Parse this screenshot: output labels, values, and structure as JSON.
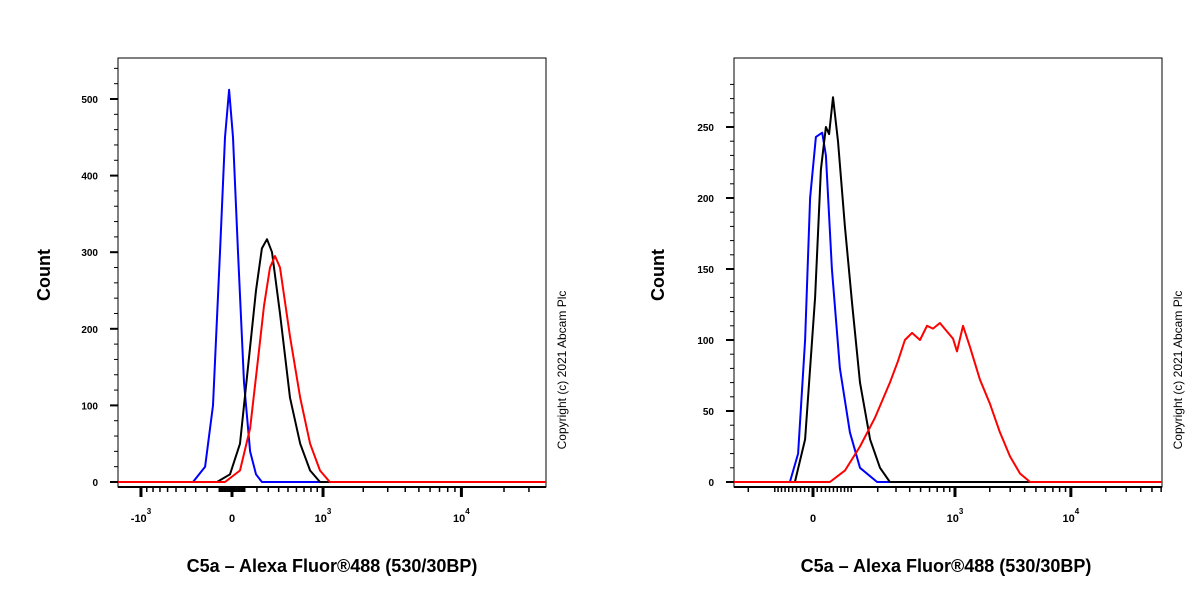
{
  "chart_data": [
    {
      "type": "line",
      "xlabel": "C5a – Alexa Fluor®488 (530/30BP)",
      "ylabel": "Count",
      "x_scale": "biexponential",
      "xlim": [
        -1490,
        39600
      ],
      "ylim": [
        0,
        560
      ],
      "y_ticks": [
        0,
        100,
        200,
        300,
        400,
        500
      ],
      "x_ticks": [
        {
          "value": -1000,
          "base": "-10",
          "exp": "3"
        },
        {
          "value": 0,
          "base": "0",
          "exp": ""
        },
        {
          "value": 1000,
          "base": "10",
          "exp": "3"
        },
        {
          "value": 10000,
          "base": "10",
          "exp": "4"
        }
      ],
      "grid": false,
      "copyright": "Copyright (c) 2021 Abcam Plc",
      "series": [
        {
          "color": "#0000ff",
          "x": [
            -325,
            -217,
            -151,
            -94,
            -55,
            -23,
            8,
            47,
            94,
            143,
            192,
            243
          ],
          "y": [
            0,
            20,
            100,
            300,
            450,
            512,
            450,
            300,
            130,
            40,
            10,
            0
          ]
        },
        {
          "color": "#000000",
          "x": [
            -118,
            -16,
            63,
            126,
            192,
            243,
            288,
            335,
            414,
            523,
            648,
            787,
            946
          ],
          "y": [
            0,
            10,
            50,
            150,
            250,
            305,
            317,
            300,
            220,
            110,
            50,
            15,
            0
          ]
        },
        {
          "color": "#ff0000",
          "x": [
            -55,
            63,
            143,
            209,
            261,
            316,
            364,
            414,
            523,
            648,
            787,
            946,
            1128
          ],
          "y": [
            0,
            15,
            70,
            160,
            230,
            280,
            295,
            280,
            190,
            110,
            50,
            15,
            0
          ]
        }
      ]
    },
    {
      "type": "line",
      "xlabel": "C5a – Alexa Fluor®488 (530/30BP)",
      "ylabel": "Count",
      "x_scale": "biexponential",
      "xlim": [
        -274,
        60900
      ],
      "ylim": [
        0,
        280
      ],
      "y_ticks": [
        0,
        50,
        100,
        150,
        200,
        250
      ],
      "x_ticks": [
        {
          "value": 0,
          "base": "0",
          "exp": ""
        },
        {
          "value": 1000,
          "base": "10",
          "exp": "3"
        },
        {
          "value": 10000,
          "base": "10",
          "exp": "4"
        }
      ],
      "grid": false,
      "copyright": "Copyright (c) 2021 Abcam Plc",
      "series": [
        {
          "color": "#0000ff",
          "x": [
            -57,
            -36,
            -19,
            -7,
            7,
            22,
            31,
            46,
            67,
            96,
            129,
            197
          ],
          "y": [
            0,
            20,
            100,
            200,
            243,
            246,
            230,
            150,
            80,
            35,
            10,
            0
          ]
        },
        {
          "color": "#000000",
          "x": [
            -44,
            -19,
            5,
            19,
            31,
            39,
            49,
            62,
            81,
            103,
            129,
            167,
            211,
            263
          ],
          "y": [
            0,
            30,
            130,
            220,
            250,
            245,
            271,
            240,
            180,
            125,
            70,
            30,
            10,
            0
          ]
        },
        {
          "color": "#ff0000",
          "x": [
            41,
            81,
            129,
            187,
            263,
            312,
            362,
            419,
            494,
            570,
            643,
            740,
            853,
            962,
            1042,
            1174,
            1349,
            1646,
            2009,
            2448,
            2988,
            3648,
            4452
          ],
          "y": [
            0,
            8,
            25,
            45,
            70,
            85,
            100,
            105,
            100,
            110,
            108,
            112,
            106,
            101,
            92,
            110,
            95,
            72,
            55,
            35,
            18,
            6,
            0
          ]
        }
      ]
    }
  ]
}
